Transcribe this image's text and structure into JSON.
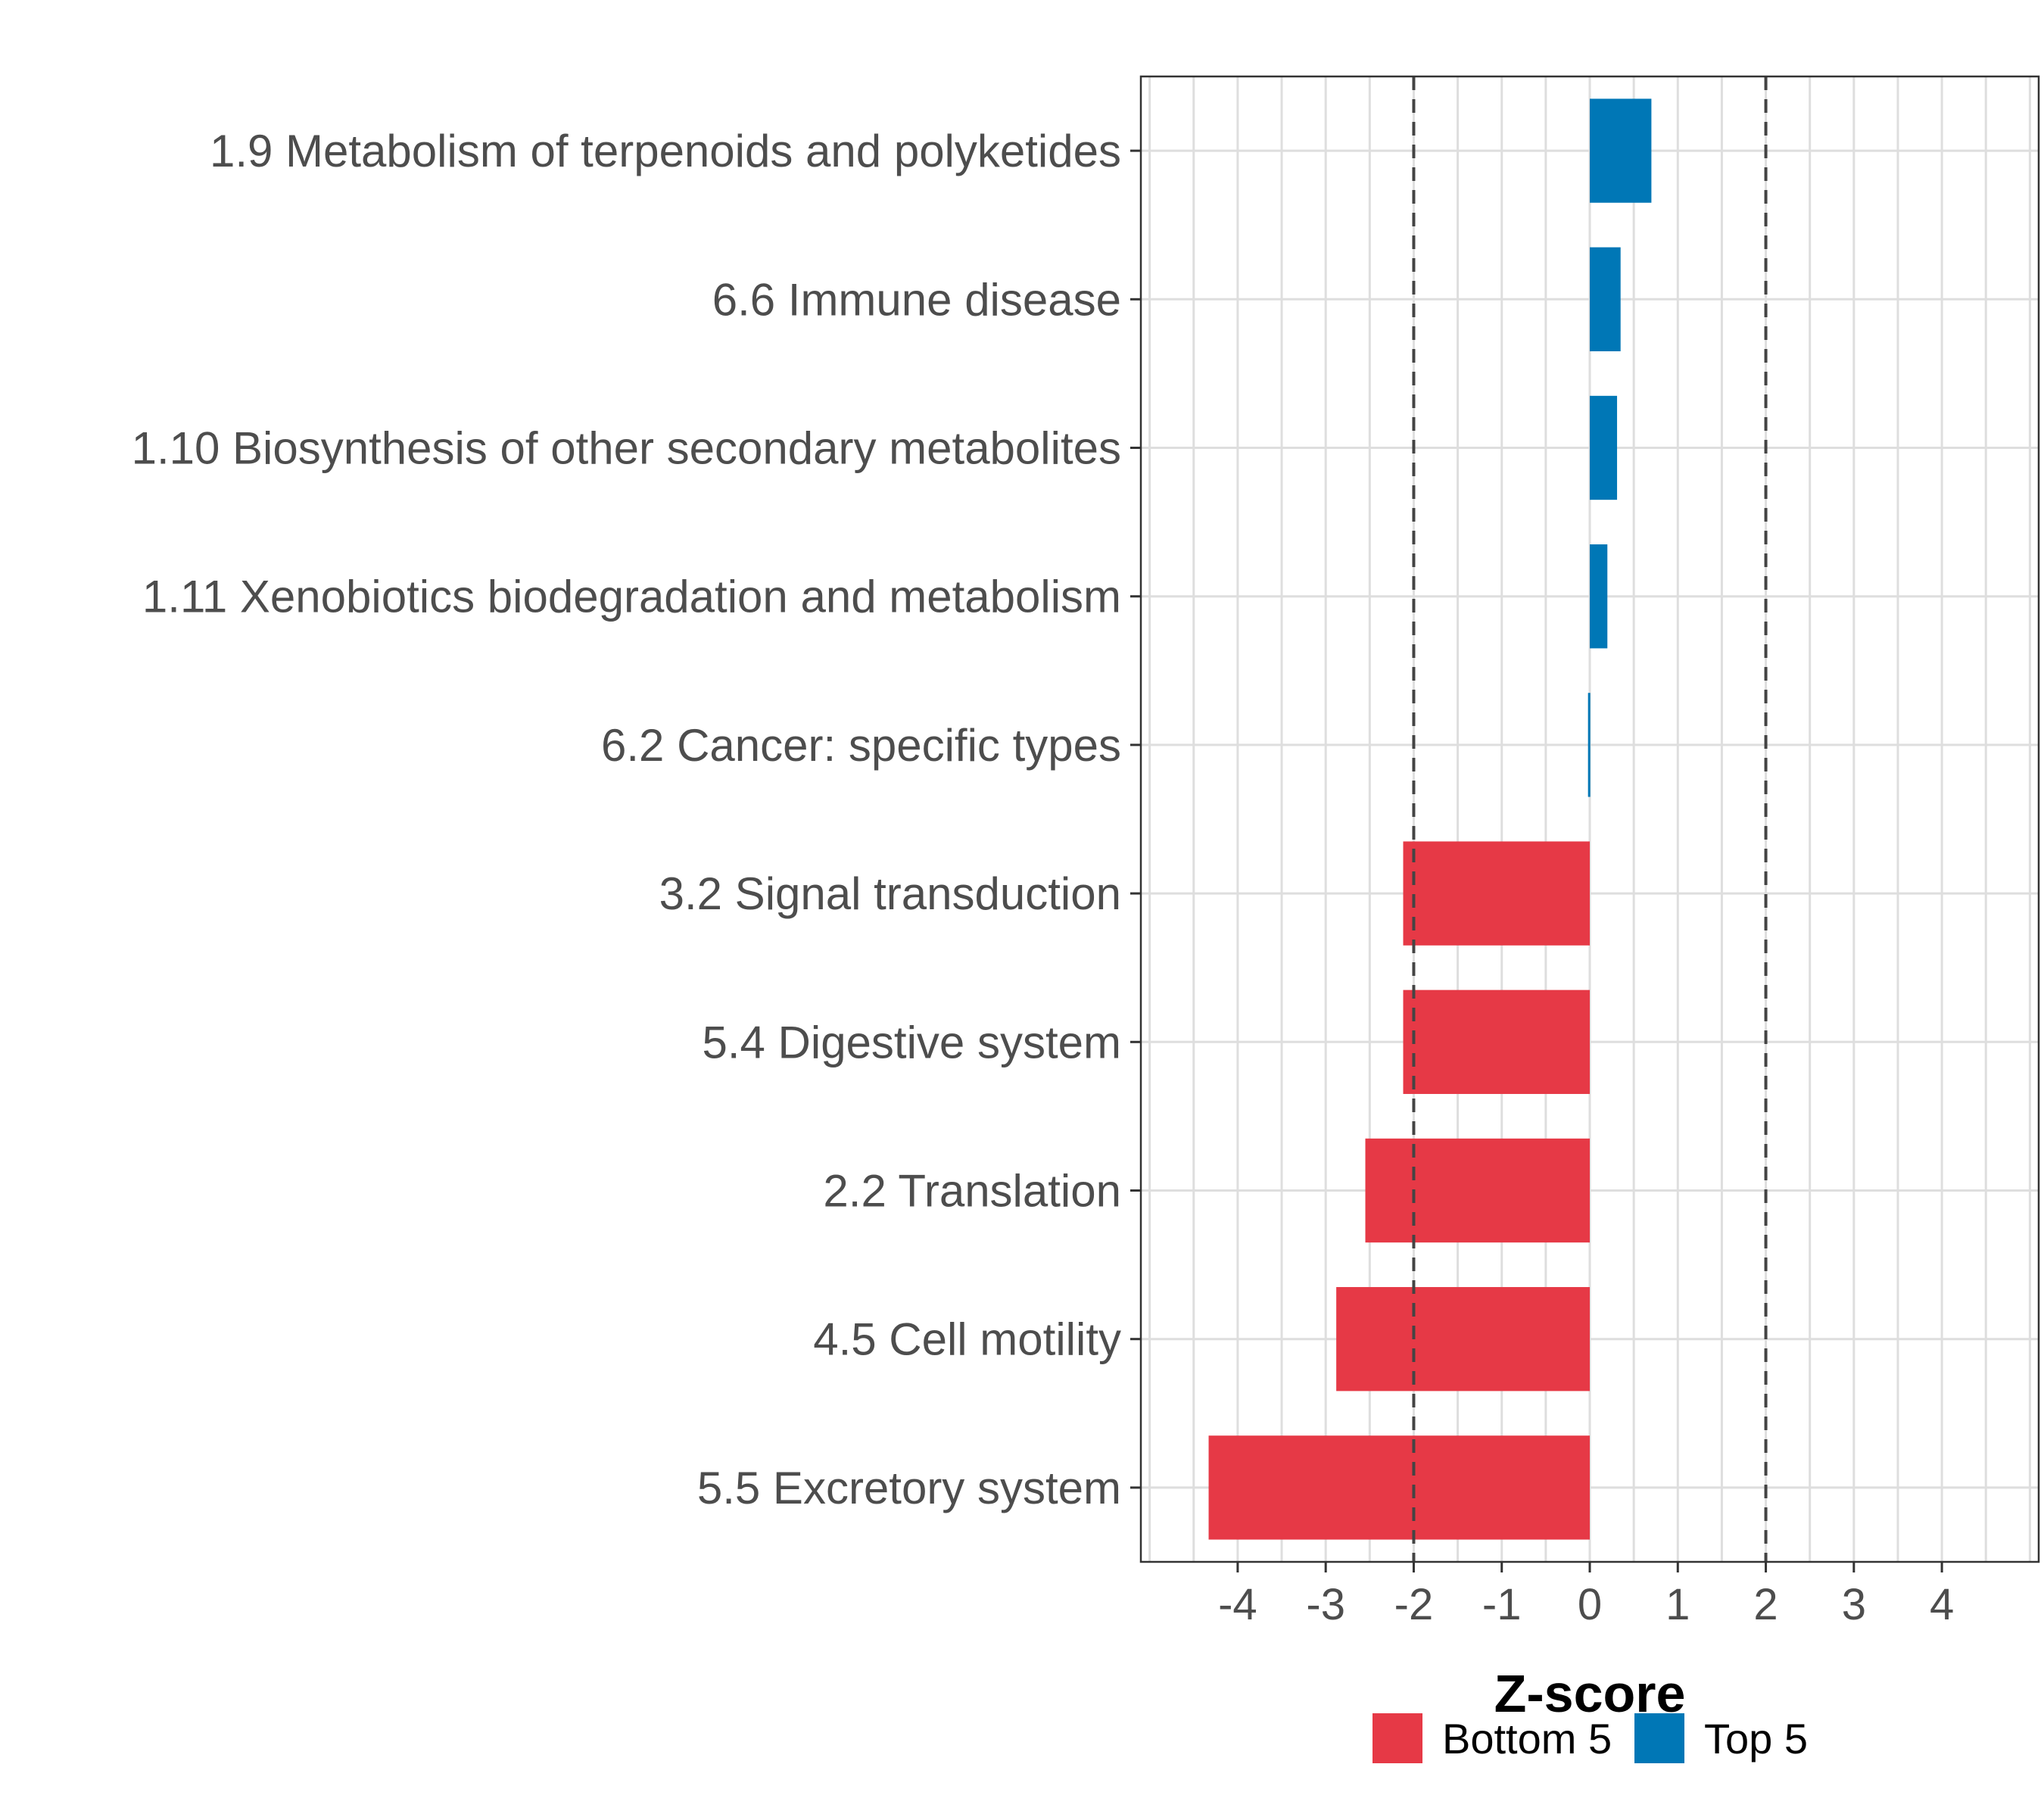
{
  "chart_data": {
    "type": "bar",
    "orientation": "horizontal",
    "categories": [
      "1.9 Metabolism of terpenoids and polyketides",
      "6.6 Immune disease",
      "1.10 Biosynthesis of other secondary metabolites",
      "1.11 Xenobiotics biodegradation and metabolism",
      "6.2 Cancer: specific types",
      "3.2 Signal transduction",
      "5.4 Digestive system",
      "2.2 Translation",
      "4.5 Cell motility",
      "5.5 Excretory system"
    ],
    "values": [
      0.7,
      0.35,
      0.31,
      0.2,
      -0.02,
      -2.12,
      -2.12,
      -2.55,
      -2.88,
      -4.33
    ],
    "groups": [
      "Top 5",
      "Top 5",
      "Top 5",
      "Top 5",
      "Top 5",
      "Bottom 5",
      "Bottom 5",
      "Bottom 5",
      "Bottom 5",
      "Bottom 5"
    ],
    "xlabel": "Z-score",
    "ylabel": "",
    "xlim": [
      -5.1,
      5.1
    ],
    "xticks": [
      "-4",
      "-3",
      "-2",
      "-1",
      "0",
      "1",
      "2",
      "3",
      "4"
    ],
    "reference_lines": [
      -2,
      2
    ],
    "legend": {
      "position": "bottom",
      "entries": [
        {
          "label": "Bottom 5",
          "color": "#e63946"
        },
        {
          "label": "Top 5",
          "color": "#0077b6"
        }
      ]
    },
    "colors": {
      "Bottom 5": "#e63946",
      "Top 5": "#0077b6"
    },
    "grid": true
  }
}
